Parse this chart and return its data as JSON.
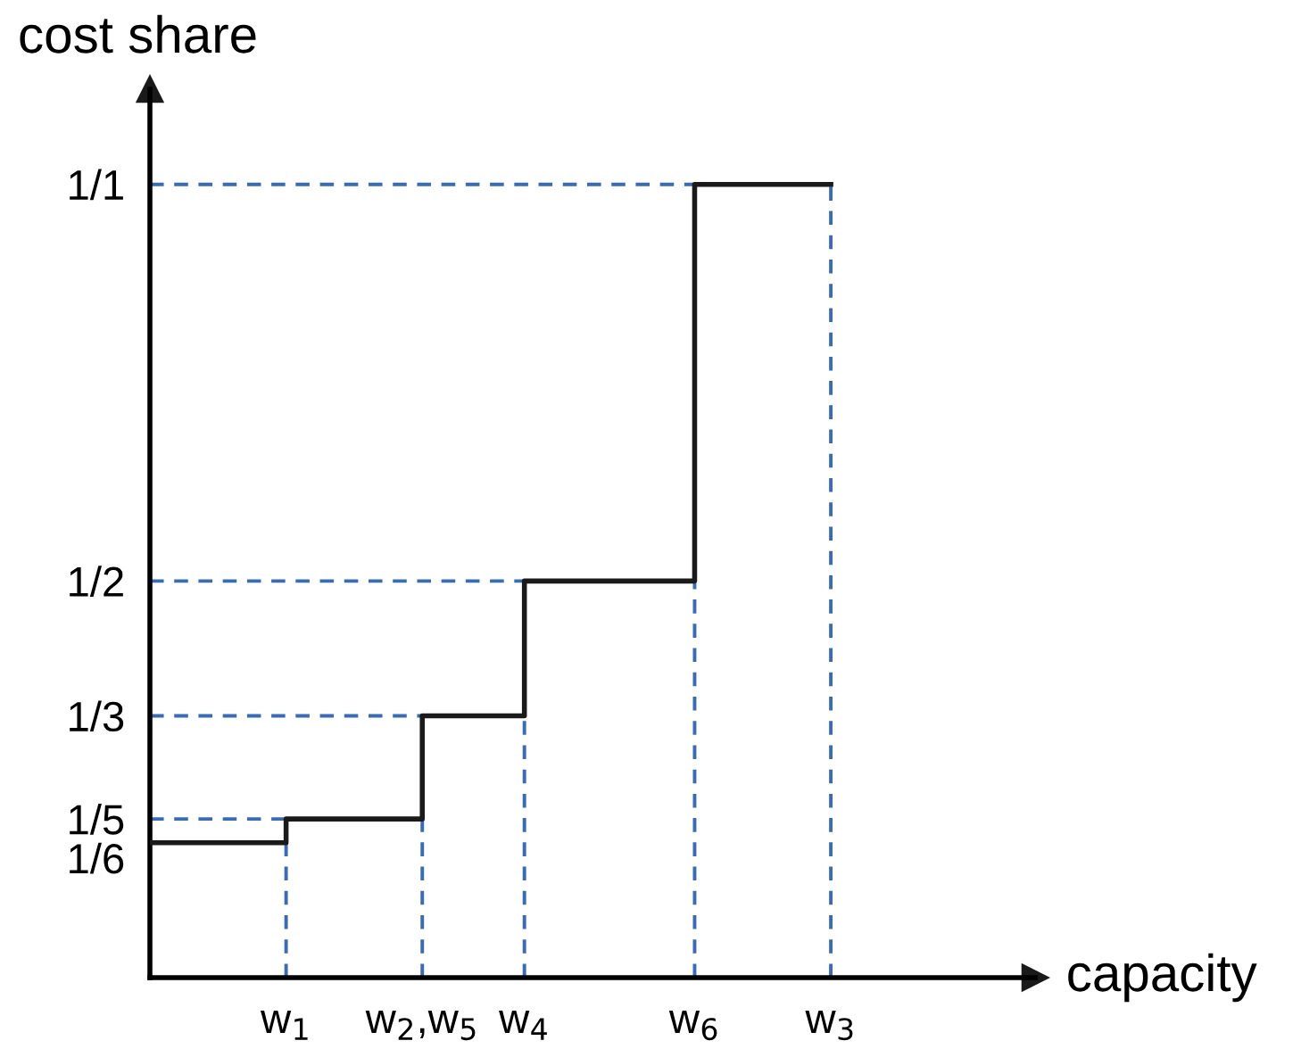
{
  "chart_data": {
    "type": "step",
    "xlabel": "capacity",
    "ylabel": "cost share",
    "categories": [
      null,
      null,
      null,
      null,
      "w$_{1}$",
      null,
      null,
      null,
      "w$_{2}$,w$_{5}$",
      null,
      null,
      "w$_{4}$",
      null,
      null,
      null,
      null,
      "w$_{6}$",
      null,
      null,
      null,
      "w$_{3}$",
      null,
      null,
      null,
      null,
      null,
      null
    ],
    "series": [
      {
        "color": "#1a1a1a",
        "values": [
          0.17,
          0.17,
          0.17,
          0.17,
          0.2,
          0.2,
          0.2,
          0.2,
          0.33,
          0.33,
          0.33,
          0.5,
          0.5,
          0.5,
          0.5,
          0.5,
          1,
          1,
          1,
          1,
          1,
          null,
          null,
          null,
          null,
          null,
          null
        ]
      }
    ],
    "ylim": [
      0,
      1.12
    ],
    "yticks": [
      {
        "value": 0.17,
        "label": "1/6"
      },
      {
        "value": 0.2,
        "label": "1/5"
      },
      {
        "value": 0.33,
        "label": "1/3"
      },
      {
        "value": 0.5,
        "label": "1/2"
      },
      {
        "value": 1,
        "label": "1/1"
      }
    ],
    "ref_lines": [
      {
        "axis": "y",
        "value": 0.2,
        "color": "#3a6bb5",
        "line_style": "dashed"
      },
      {
        "axis": "y",
        "value": 0.33,
        "color": "#3a6bb5",
        "line_style": "dashed"
      },
      {
        "axis": "y",
        "value": 0.5,
        "color": "#3a6bb5",
        "line_style": "dashed"
      },
      {
        "axis": "y",
        "value": 1,
        "color": "#3a6bb5",
        "line_style": "dashed"
      },
      {
        "axis": "x",
        "value": "w$_{1}$",
        "color": "#3a6bb5",
        "line_style": "dashed"
      },
      {
        "axis": "x",
        "value": "w$_{2}$,w$_{5}$",
        "color": "#3a6bb5",
        "line_style": "dashed"
      },
      {
        "axis": "x",
        "value": "w$_{4}$",
        "color": "#3a6bb5",
        "line_style": "dashed"
      },
      {
        "axis": "x",
        "value": "w$_{6}$",
        "color": "#3a6bb5",
        "line_style": "dashed"
      },
      {
        "axis": "x",
        "value": "w$_{3}$",
        "color": "#3a6bb5",
        "line_style": "dashed"
      }
    ],
    "grid": false,
    "line_style": "solid",
    "marker": "none"
  }
}
